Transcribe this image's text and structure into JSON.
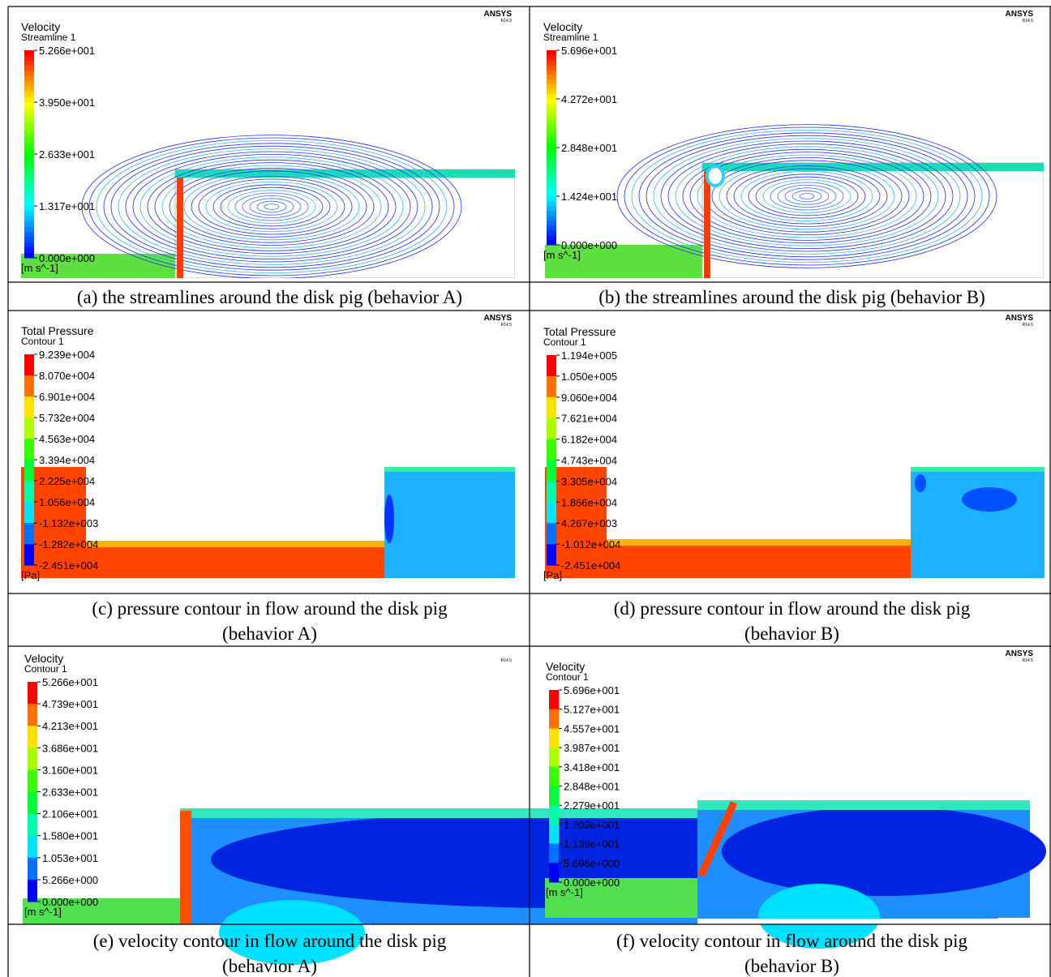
{
  "panels": [
    {
      "title": "Velocity",
      "subtitle": "Streamline 1",
      "labels": [
        "5.266e+001",
        "3.950e+001",
        "2.633e+001",
        "1.317e+001",
        "0.000e+000"
      ],
      "unit": "[m s^-1]",
      "logo": "ANSYS",
      "version": "R14.5",
      "caption": [
        "(a) the streamlines around the disk pig (behavior A)"
      ]
    },
    {
      "title": "Velocity",
      "subtitle": "Streamline 1",
      "labels": [
        "5.696e+001",
        "4.272e+001",
        "2.848e+001",
        "1.424e+001",
        "0.000e+000"
      ],
      "unit": "[m s^-1]",
      "logo": "ANSYS",
      "version": "R14.5",
      "caption": [
        "(b) the streamlines around the disk pig (behavior B)"
      ]
    },
    {
      "title": "Total Pressure",
      "subtitle": "Contour 1",
      "labels": [
        "9.239e+004",
        "8.070e+004",
        "6.901e+004",
        "5.732e+004",
        "4.563e+004",
        "3.394e+004",
        "2.225e+004",
        "1.056e+004",
        "-1.132e+003",
        "-1.282e+004",
        "-2.451e+004"
      ],
      "unit": "[Pa]",
      "logo": "ANSYS",
      "version": "R14.5",
      "caption": [
        "(c) pressure contour in flow  around the disk pig",
        "(behavior A)"
      ]
    },
    {
      "title": "Total Pressure",
      "subtitle": "Contour 1",
      "labels": [
        "1.194e+005",
        "1.050e+005",
        "9.060e+004",
        "7.621e+004",
        "6.182e+004",
        "4.743e+004",
        "3.305e+004",
        "1.866e+004",
        "4.267e+003",
        "-1.012e+004",
        "-2.451e+004"
      ],
      "unit": "[Pa]",
      "logo": "ANSYS",
      "version": "R14.5",
      "caption": [
        "(d) pressure contour in flow  around the disk pig",
        "(behavior B)"
      ]
    },
    {
      "title": "Velocity",
      "subtitle": "Contour 1",
      "labels": [
        "5.266e+001",
        "4.739e+001",
        "4.213e+001",
        "3.686e+001",
        "3.160e+001",
        "2.633e+001",
        "2.106e+001",
        "1.580e+001",
        "1.053e+001",
        "5.266e+000",
        "0.000e+000"
      ],
      "unit": "[m s^-1]",
      "version": "R14.5",
      "caption": [
        "(e) velocity contour  in flow  around the disk pig",
        "(behavior A)"
      ]
    },
    {
      "title": "Velocity",
      "subtitle": "Contour 1",
      "labels": [
        "5.696e+001",
        "5.127e+001",
        "4.557e+001",
        "3.987e+001",
        "3.418e+001",
        "2.848e+001",
        "2.279e+001",
        "1.709e+001",
        "1.139e+001",
        "5.696e+000",
        "0.000e+000"
      ],
      "unit": "[m s^-1]",
      "logo": "ANSYS",
      "version": "R14.5",
      "caption": [
        "(f) velocity contour  in flow  around the disk pig",
        "(behavior B)"
      ]
    }
  ]
}
